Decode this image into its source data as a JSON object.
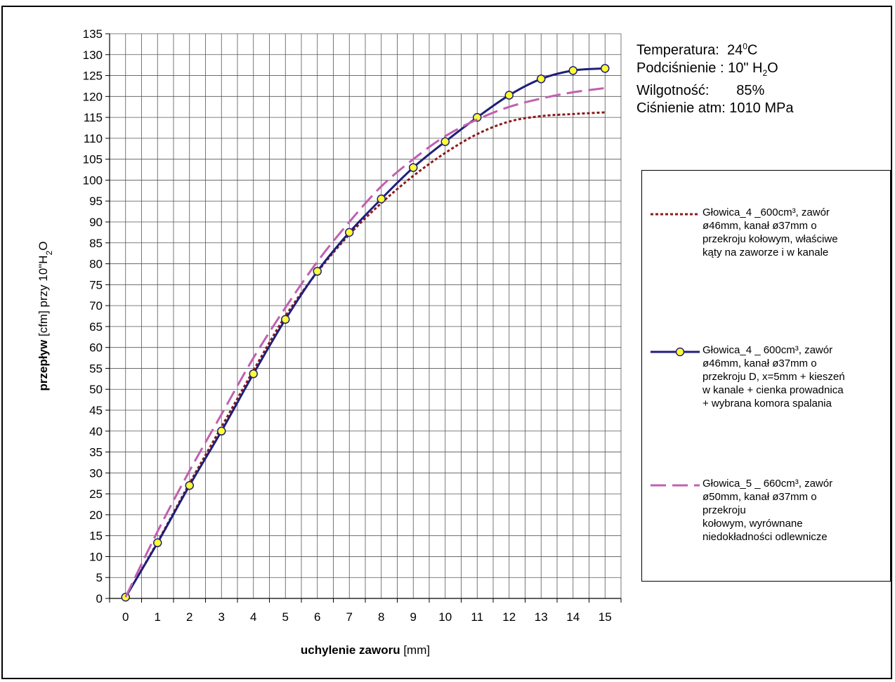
{
  "conditions": {
    "temperature_label": "Temperatura:  24",
    "temperature_sup": "0",
    "temperature_unit": "C",
    "vacuum_label": "Podciśnienie : 10\" H",
    "vacuum_sub": "2",
    "vacuum_unit": "O",
    "humidity": "Wilgotność:       85%",
    "pressure": "Ciśnienie atm: 1010 MPa"
  },
  "legend": {
    "items": [
      {
        "text": "Głowica_4 _600cm³, zawór\nø46mm, kanał ø37mm o\nprzekroju kołowym,  właściwe\nkąty na zaworze i w kanale"
      },
      {
        "text": "Głowica_4 _ 600cm³, zawór\nø46mm, kanał  ø37mm o\nprzekroju D, x=5mm + kieszeń\nw kanale + cienka prowadnica\n+ wybrana komora spalania"
      },
      {
        "text": "Głowica_5 _ 660cm³, zawór\nø50mm,  kanał ø37mm o\nprzekroju\nkołowym, wyrównane\nniedokładności odlewnicze"
      }
    ]
  },
  "chart_data": {
    "type": "line",
    "xlabel_bold": "uchylenie zaworu",
    "xlabel_rest": " [mm]",
    "ylabel_bold": "przepływ",
    "ylabel_rest": " [cfm] przy 10\"H",
    "ylabel_sub": "2",
    "ylabel_end": "O",
    "x": [
      0,
      1,
      2,
      3,
      4,
      5,
      6,
      7,
      8,
      9,
      10,
      11,
      12,
      13,
      14,
      15
    ],
    "xlim": [
      -0.5,
      15.5
    ],
    "ylim": [
      0,
      135
    ],
    "y_ticks": [
      0,
      5,
      10,
      15,
      20,
      25,
      30,
      35,
      40,
      45,
      50,
      55,
      60,
      65,
      70,
      75,
      80,
      85,
      90,
      95,
      100,
      105,
      110,
      115,
      120,
      125,
      130,
      135
    ],
    "grid": true,
    "legend_position": "right",
    "series": [
      {
        "values": [
          0.3,
          13.5,
          27.5,
          41.0,
          54.5,
          67.5,
          78.0,
          87.0,
          94.5,
          101.0,
          106.5,
          111.0,
          114.0,
          115.3,
          115.8,
          116.2
        ],
        "color": "#8b1a1a",
        "style": "dotted",
        "marker": "none"
      },
      {
        "values": [
          0.3,
          13.3,
          27.0,
          40.0,
          53.7,
          66.7,
          78.2,
          87.5,
          95.5,
          103.0,
          109.2,
          115.0,
          120.3,
          124.2,
          126.2,
          126.7
        ],
        "color": "#1f1f7a",
        "style": "solid",
        "marker": "circle",
        "marker_fill": "#ffff33"
      },
      {
        "values": [
          0.3,
          16.0,
          30.5,
          44.0,
          57.5,
          69.5,
          80.5,
          90.0,
          98.5,
          105.0,
          110.5,
          114.5,
          117.5,
          119.5,
          121.0,
          122.0
        ],
        "color": "#c060b0",
        "style": "dashed",
        "marker": "none"
      }
    ]
  }
}
